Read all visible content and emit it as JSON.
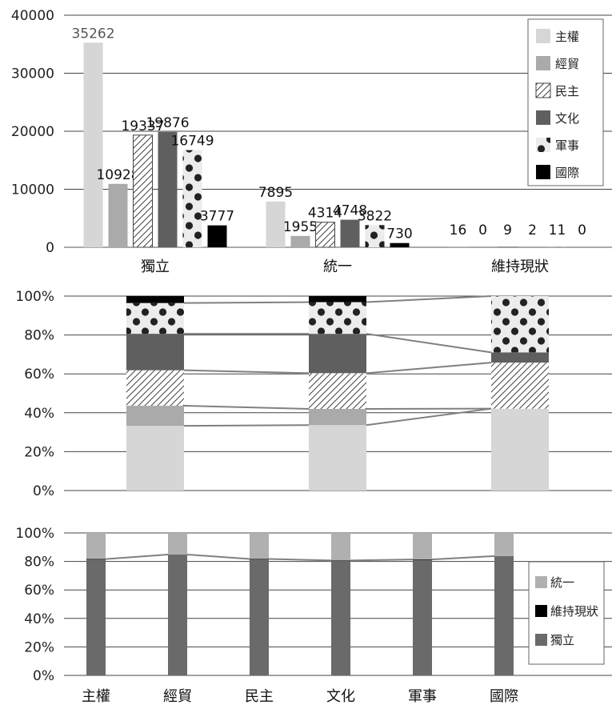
{
  "colors": {
    "主權": "#d6d6d6",
    "經貿": "#aaaaaa",
    "民主": "#ffffff",
    "文化": "#5f5f5f",
    "軍事": "#ececec",
    "國際": "#000000",
    "統一": "#b0b0b0",
    "維持現狀": "#000000",
    "獨立": "#6a6a6a",
    "connector": "#808080"
  },
  "chart_data": [
    {
      "type": "bar",
      "categories": [
        "獨立",
        "統一",
        "維持現狀"
      ],
      "ylim": [
        0,
        40000
      ],
      "yticks": [
        "0",
        "10000",
        "20000",
        "30000",
        "40000"
      ],
      "series": [
        {
          "name": "主權",
          "values": [
            35262,
            7895,
            16
          ]
        },
        {
          "name": "經貿",
          "values": [
            10928,
            1955,
            0
          ]
        },
        {
          "name": "民主",
          "values": [
            19337,
            4314,
            9
          ]
        },
        {
          "name": "文化",
          "values": [
            19876,
            4748,
            2
          ]
        },
        {
          "name": "軍事",
          "values": [
            16749,
            3822,
            11
          ]
        },
        {
          "name": "國際",
          "values": [
            3777,
            730,
            0
          ]
        }
      ],
      "legend_position": "top-right"
    },
    {
      "type": "bar",
      "stacked": "percent",
      "categories": [
        "獨立",
        "統一",
        "維持現狀"
      ],
      "yticks": [
        "0%",
        "20%",
        "40%",
        "60%",
        "80%",
        "100%"
      ],
      "series": [
        {
          "name": "主權",
          "values": [
            35262,
            7895,
            16
          ]
        },
        {
          "name": "經貿",
          "values": [
            10928,
            1955,
            0
          ]
        },
        {
          "name": "民主",
          "values": [
            19337,
            4314,
            9
          ]
        },
        {
          "name": "文化",
          "values": [
            19876,
            4748,
            2
          ]
        },
        {
          "name": "軍事",
          "values": [
            16749,
            3822,
            11
          ]
        },
        {
          "name": "國際",
          "values": [
            3777,
            730,
            0
          ]
        }
      ],
      "series_lines": true
    },
    {
      "type": "bar",
      "stacked": "percent",
      "categories": [
        "主權",
        "經貿",
        "民主",
        "文化",
        "軍事",
        "國際"
      ],
      "yticks": [
        "0%",
        "20%",
        "40%",
        "60%",
        "80%",
        "100%"
      ],
      "series": [
        {
          "name": "獨立",
          "values": [
            35262,
            10928,
            19337,
            19876,
            16749,
            3777
          ]
        },
        {
          "name": "維持現狀",
          "values": [
            16,
            0,
            9,
            2,
            11,
            0
          ]
        },
        {
          "name": "統一",
          "values": [
            7895,
            1955,
            4314,
            4748,
            3822,
            730
          ]
        }
      ],
      "legend": [
        "統一",
        "維持現狀",
        "獨立"
      ],
      "legend_position": "bottom-right",
      "series_lines": true
    }
  ]
}
